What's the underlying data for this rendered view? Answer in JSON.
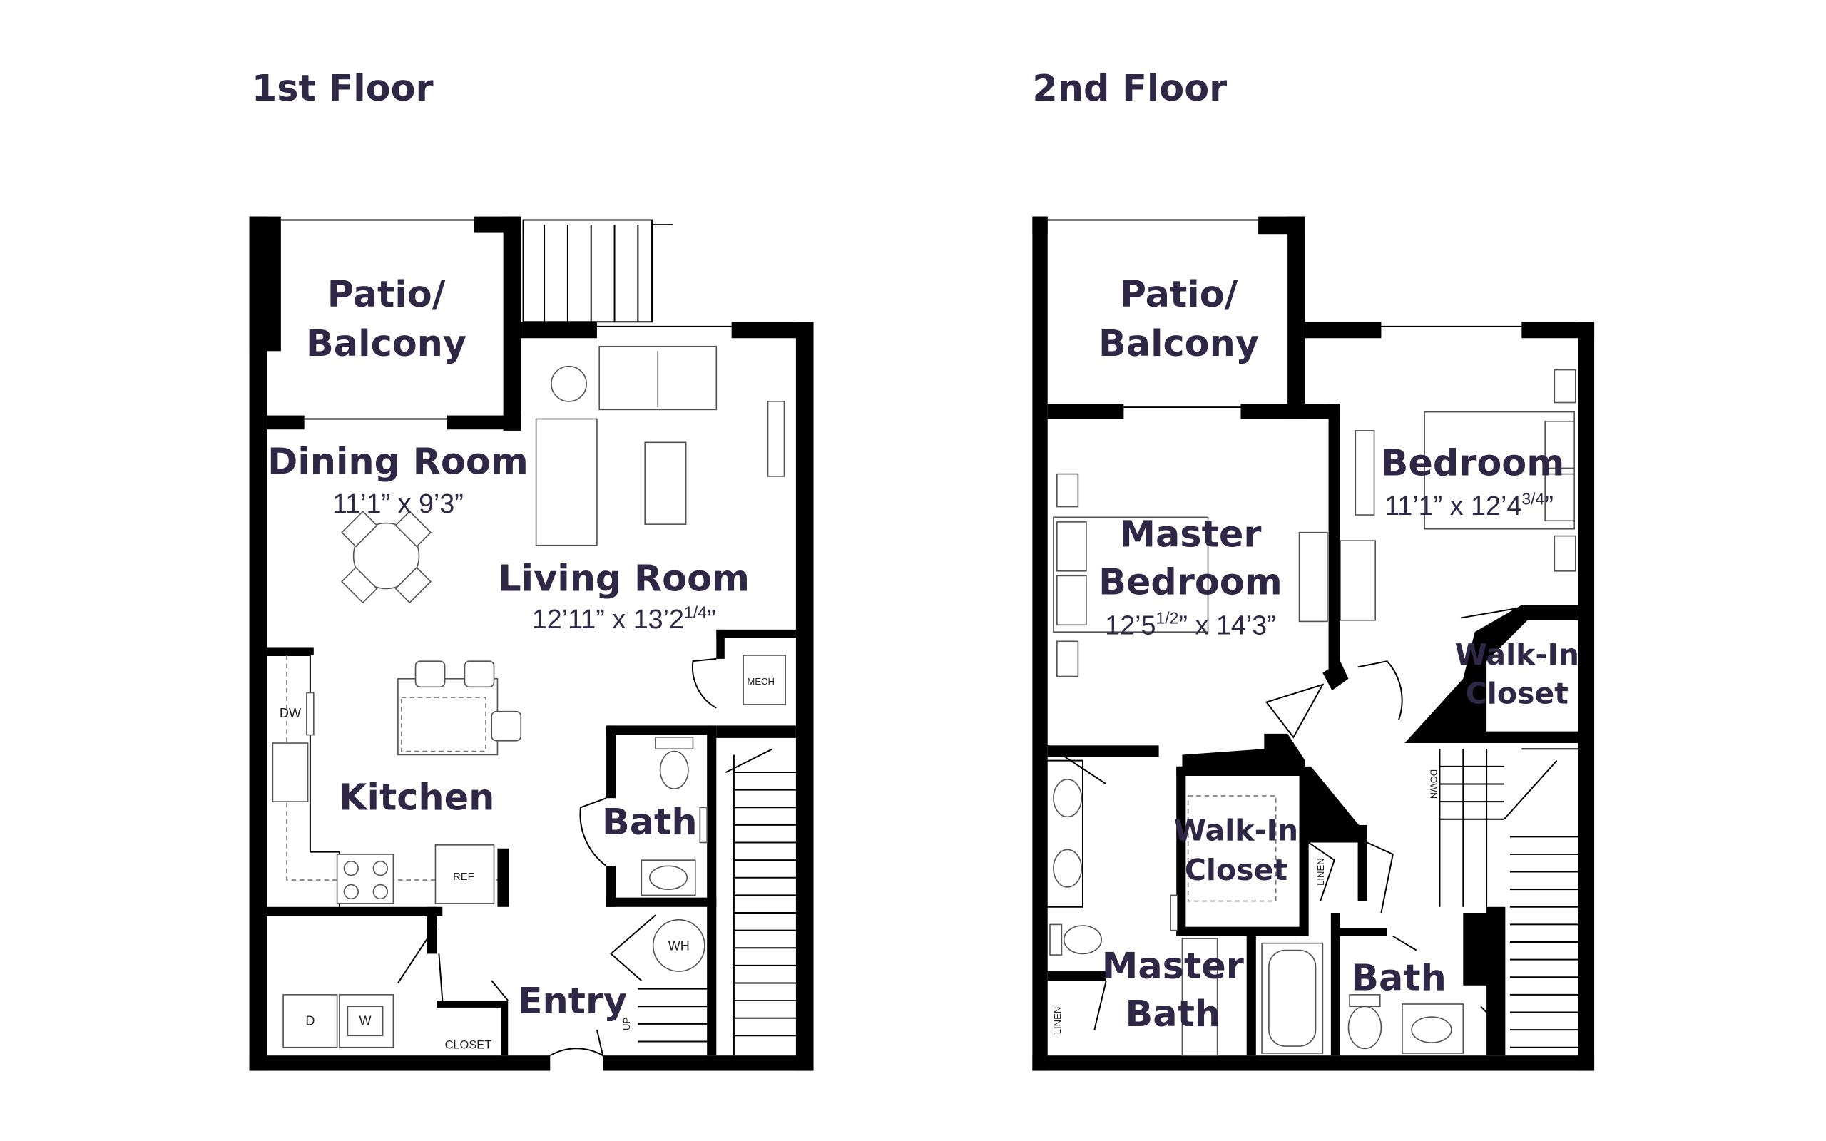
{
  "floors": [
    {
      "title": "1st Floor",
      "rooms": [
        {
          "lines": [
            "Patio/",
            "Balcony"
          ]
        },
        {
          "lines": [
            "Dining Room"
          ],
          "dims": {
            "main": "11’1” x 9’3”"
          }
        },
        {
          "lines": [
            "Living Room"
          ],
          "dims": {
            "main": "12’11” x 13’2",
            "sup": "1/4",
            "end": "”"
          }
        },
        {
          "lines": [
            "Kitchen"
          ]
        },
        {
          "lines": [
            "Bath"
          ]
        },
        {
          "lines": [
            "Entry"
          ]
        }
      ],
      "labels": [
        "DW",
        "MECH",
        "REF",
        "WH",
        "D",
        "W",
        "CLOSET",
        "UP"
      ]
    },
    {
      "title": "2nd Floor",
      "rooms": [
        {
          "lines": [
            "Patio/",
            "Balcony"
          ]
        },
        {
          "lines": [
            "Bedroom"
          ],
          "dims": {
            "main": "11’1” x 12’4",
            "sup": "3/4",
            "end": "”"
          }
        },
        {
          "lines": [
            "Master",
            "Bedroom"
          ],
          "dims": {
            "main": "12’5",
            "sup": "1/2",
            "end": "” x 14’3”"
          }
        },
        {
          "lines": [
            "Walk-In",
            "Closet"
          ]
        },
        {
          "lines": [
            "Walk-In",
            "Closet"
          ]
        },
        {
          "lines": [
            "Master",
            "Bath"
          ]
        },
        {
          "lines": [
            "Bath"
          ]
        }
      ],
      "labels": [
        "LINEN",
        "LINEN",
        "DOWN"
      ]
    }
  ]
}
